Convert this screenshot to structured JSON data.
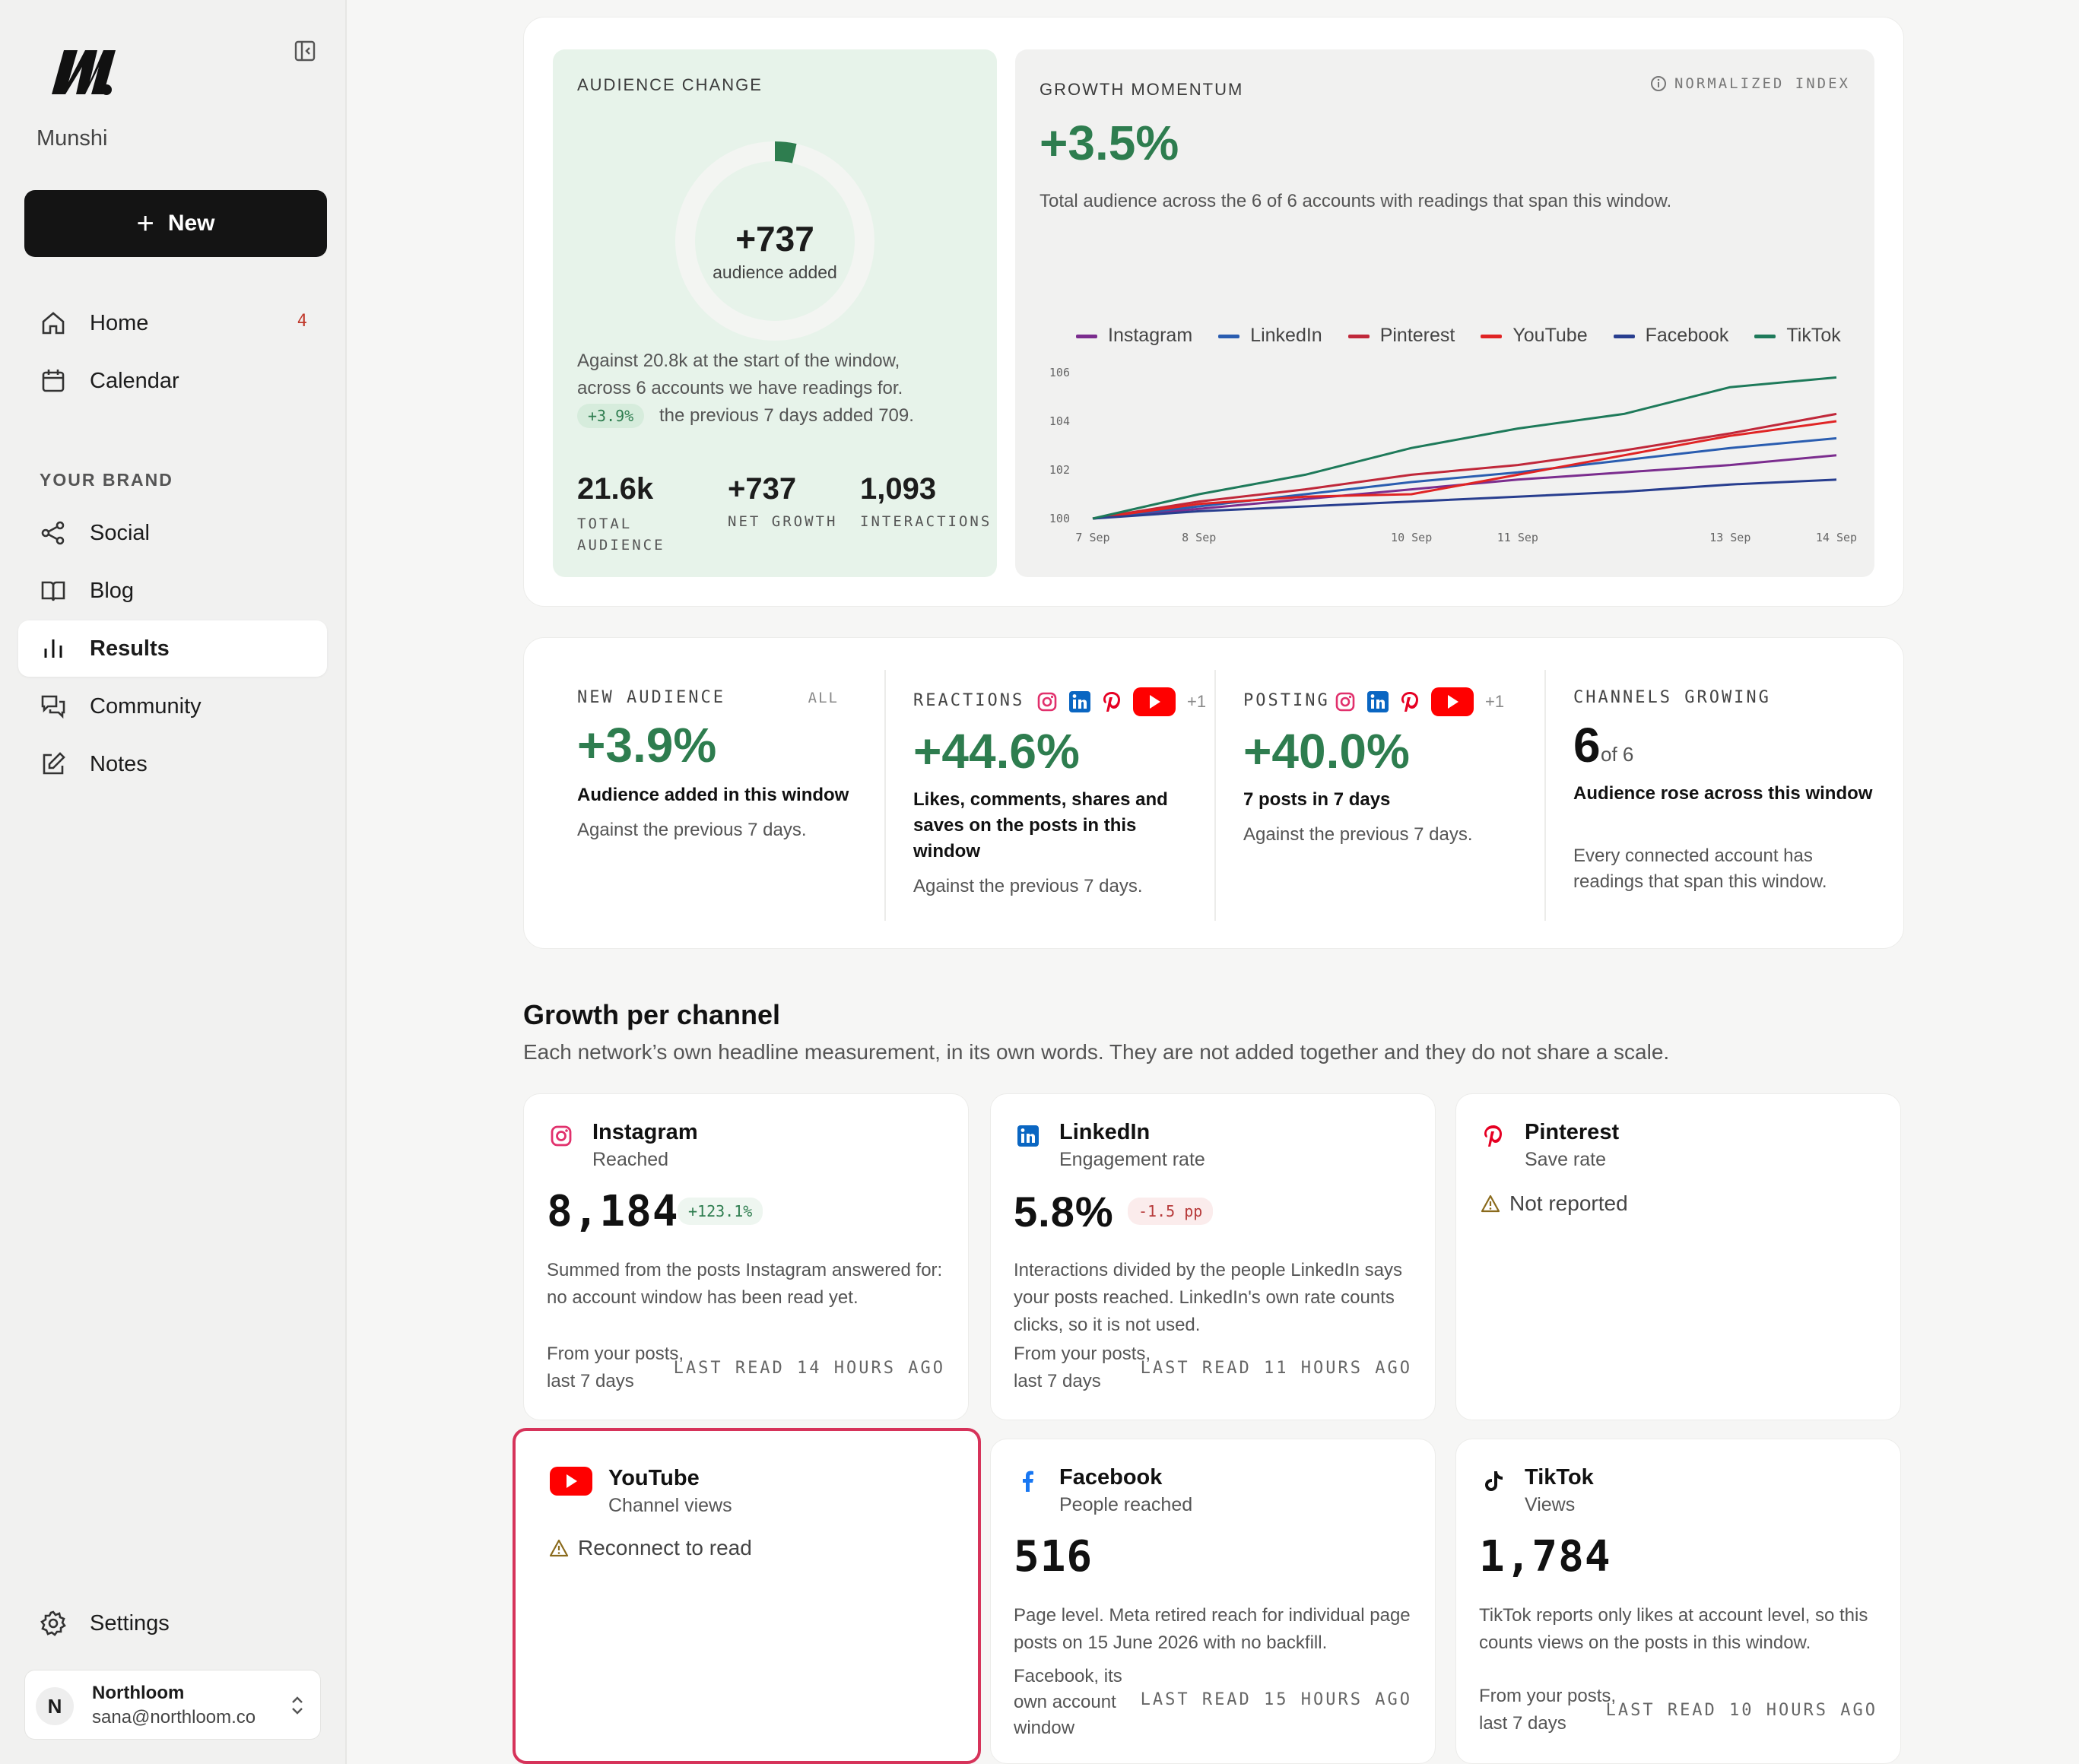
{
  "app": {
    "name": "Munshi",
    "new_label": "New"
  },
  "nav": {
    "home": "Home",
    "home_badge": "4",
    "calendar": "Calendar",
    "section": "YOUR BRAND",
    "social": "Social",
    "blog": "Blog",
    "results": "Results",
    "community": "Community",
    "notes": "Notes",
    "settings": "Settings"
  },
  "account": {
    "initial": "N",
    "name": "Northloom",
    "email": "sana@northloom.co"
  },
  "audience_change": {
    "eyebrow": "AUDIENCE CHANGE",
    "ring_value": "+737",
    "ring_caption": "audience added",
    "ring_fraction": 0.035,
    "line1": "Against 20.8k at the start of the window,",
    "line2": "across 6 accounts we have readings for.",
    "chip": "+3.9%",
    "line3": "the previous 7 days added 709.",
    "stats": [
      {
        "value": "21.6k",
        "label1": "TOTAL",
        "label2": "AUDIENCE"
      },
      {
        "value": "+737",
        "label1": "NET GROWTH",
        "label2": ""
      },
      {
        "value": "1,093",
        "label1": "INTERACTIONS",
        "label2": ""
      }
    ]
  },
  "growth_momentum": {
    "eyebrow": "GROWTH MOMENTUM",
    "badge": "NORMALIZED INDEX",
    "value": "+3.5%",
    "desc": "Total audience across the 6 of 6 accounts with readings that span this window."
  },
  "chart_data": {
    "type": "line",
    "x": [
      "7 Sep",
      "8 Sep",
      "9 Sep",
      "10 Sep",
      "11 Sep",
      "12 Sep",
      "13 Sep",
      "14 Sep"
    ],
    "x_tick_labels": [
      "7 Sep",
      "8 Sep",
      "10 Sep",
      "11 Sep",
      "13 Sep",
      "14 Sep"
    ],
    "y_ticks": [
      "106",
      "104",
      "102",
      "100"
    ],
    "ylim": [
      100,
      106
    ],
    "grid": false,
    "legend_position": "top",
    "series": [
      {
        "name": "Instagram",
        "color": "#7b2d8e",
        "values": [
          100,
          100.4,
          100.8,
          101.2,
          101.6,
          101.9,
          102.2,
          102.6
        ]
      },
      {
        "name": "LinkedIn",
        "color": "#2a5db0",
        "values": [
          100,
          100.5,
          101.0,
          101.5,
          101.9,
          102.4,
          102.9,
          103.3
        ]
      },
      {
        "name": "Pinterest",
        "color": "#c0283a",
        "values": [
          100,
          100.7,
          101.2,
          101.8,
          102.2,
          102.8,
          103.5,
          104.3
        ]
      },
      {
        "name": "YouTube",
        "color": "#e02424",
        "values": [
          100,
          100.6,
          100.9,
          101.0,
          101.8,
          102.6,
          103.4,
          104.0
        ]
      },
      {
        "name": "Facebook",
        "color": "#283e8f",
        "values": [
          100,
          100.3,
          100.5,
          100.7,
          100.9,
          101.1,
          101.4,
          101.6
        ]
      },
      {
        "name": "TikTok",
        "color": "#1e7a5a",
        "values": [
          100,
          101.0,
          101.8,
          102.9,
          103.7,
          104.3,
          105.4,
          105.8
        ]
      }
    ]
  },
  "kpis": [
    {
      "label": "NEW AUDIENCE",
      "tag": "ALL",
      "value": "+3.9%",
      "title": "Audience added in this window",
      "sub": "Against the previous 7 days."
    },
    {
      "label": "REACTIONS",
      "more": "+1",
      "value": "+44.6%",
      "title": "Likes, comments, shares and saves on the posts in this window",
      "sub": "Against the previous 7 days."
    },
    {
      "label": "POSTING",
      "more": "+1",
      "value": "+40.0%",
      "title": "7 posts in 7 days",
      "sub": "Against the previous 7 days."
    },
    {
      "label": "CHANNELS GROWING",
      "value": "6",
      "value_suffix": "of 6",
      "title": "Audience rose across this window",
      "sub": "Every connected account has readings that span this window."
    }
  ],
  "growth_per_channel": {
    "title": "Growth per channel",
    "subtitle": "Each network’s own headline measurement, in its own words. They are not added together and they do not share a scale."
  },
  "channels": [
    {
      "name": "Instagram",
      "metric": "Reached",
      "value": "8,184",
      "chip": "+123.1%",
      "desc": "Summed from the posts Instagram answered for: no account window has been read yet.",
      "src1": "From your posts,",
      "src2": "last 7 days",
      "read": "LAST READ 14 HOURS AGO"
    },
    {
      "name": "LinkedIn",
      "metric": "Engagement rate",
      "value": "5.8%",
      "chip": "-1.5 pp",
      "desc": "Interactions divided by the people LinkedIn says your posts reached. LinkedIn's own rate counts clicks, so it is not used.",
      "src1": "From your posts,",
      "src2": "last 7 days",
      "read": "LAST READ 11 HOURS AGO"
    },
    {
      "name": "Pinterest",
      "metric": "Save rate",
      "warning": "Not reported"
    },
    {
      "name": "YouTube",
      "metric": "Channel views",
      "warning": "Reconnect to read"
    },
    {
      "name": "Facebook",
      "metric": "People reached",
      "value": "516",
      "desc": "Page level. Meta retired reach for individual page posts on 15 June 2026 with no backfill.",
      "src1": "Facebook, its",
      "src2": "own account",
      "src3": "window",
      "read": "LAST READ 15 HOURS AGO"
    },
    {
      "name": "TikTok",
      "metric": "Views",
      "value": "1,784",
      "desc": "TikTok reports only likes at account level, so this counts views on the posts in this window.",
      "src1": "From your posts,",
      "src2": "last 7 days",
      "read": "LAST READ 10 HOURS AGO"
    }
  ]
}
